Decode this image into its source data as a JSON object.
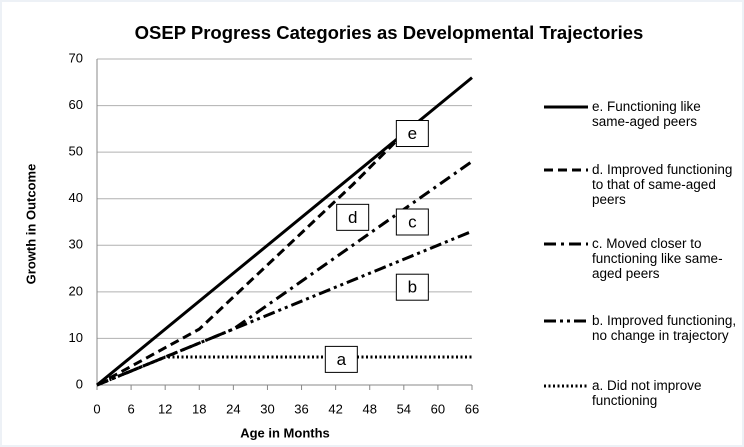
{
  "chart_data": {
    "type": "line",
    "title": "OSEP Progress Categories as Developmental Trajectories",
    "xlabel": "Age in Months",
    "ylabel": "Growth in Outcome",
    "xlim": [
      0,
      66
    ],
    "xticks": [
      0,
      6,
      12,
      18,
      24,
      30,
      36,
      42,
      48,
      54,
      60,
      66
    ],
    "ylim": [
      0,
      70
    ],
    "yticks": [
      0,
      10,
      20,
      30,
      40,
      50,
      60,
      70
    ],
    "grid": true,
    "legend": "right",
    "series": [
      {
        "name": "e. Functioning like same-aged peers",
        "color": "#000000",
        "dash": "solid",
        "x": [
          0,
          66
        ],
        "values": [
          0,
          66
        ]
      },
      {
        "name": "d. Improved functioning to that of same-aged peers",
        "color": "#000000",
        "dash": "dash",
        "x": [
          0,
          18,
          45,
          54
        ],
        "values": [
          0,
          12,
          43,
          54
        ]
      },
      {
        "name": "c. Moved closer to functioning like same-aged peers",
        "color": "#000000",
        "dash": "dashdot",
        "x": [
          0,
          24,
          66
        ],
        "values": [
          0,
          12,
          48
        ]
      },
      {
        "name": "b. Improved functioning, no change in trajectory",
        "color": "#000000",
        "dash": "dashdotdot",
        "x": [
          0,
          24,
          66
        ],
        "values": [
          0,
          12,
          33
        ]
      },
      {
        "name": "a. Did not improve functioning",
        "color": "#000000",
        "dash": "dot",
        "x": [
          0,
          12,
          66
        ],
        "values": [
          0,
          6,
          6
        ]
      }
    ],
    "annotations": [
      "e",
      "d",
      "c",
      "b",
      "a"
    ]
  }
}
